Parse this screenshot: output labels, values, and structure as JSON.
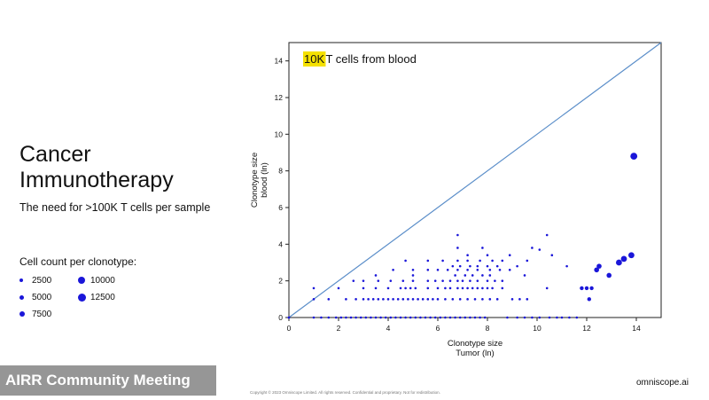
{
  "slide": {
    "title_line1": "Cancer",
    "title_line2": "Immunotherapy",
    "subtitle": "The need for >100K T cells per sample"
  },
  "legend": {
    "title": "Cell count per clonotype:",
    "items": [
      {
        "label": "2500",
        "size": 2500
      },
      {
        "label": "10000",
        "size": 10000
      },
      {
        "label": "5000",
        "size": 5000
      },
      {
        "label": "12500",
        "size": 12500
      },
      {
        "label": "7500",
        "size": 7500
      }
    ]
  },
  "footer": {
    "watermark": "AIRR Community Meeting",
    "copyright": "Copyright © 2023 Omniscope Limited. All rights reserved. Confidential and proprietary. Not for redistribution.",
    "brand": "omniscope.ai"
  },
  "colors": {
    "points": "#1a16d9",
    "diagonal": "#5b8ec9",
    "highlight": "#f5e100",
    "axis": "#222222"
  },
  "chart_data": {
    "type": "scatter",
    "annotation_highlight": "10K",
    "annotation_rest": " T cells from blood",
    "xlabel": "Clonotype size\nTumor (ln)",
    "ylabel": "Clonotype size\nblood (ln)",
    "xlim": [
      0,
      15
    ],
    "ylim": [
      0,
      15
    ],
    "xticks": [
      0,
      2,
      4,
      6,
      8,
      10,
      12,
      14
    ],
    "yticks": [
      0,
      2,
      4,
      6,
      8,
      10,
      12,
      14
    ],
    "reference_line": {
      "type": "identity",
      "from": [
        0,
        0
      ],
      "to": [
        15,
        15
      ]
    },
    "points": [
      [
        0.0,
        0.0
      ],
      [
        0.0,
        0.0
      ],
      [
        1.0,
        0.0
      ],
      [
        1.3,
        0.0
      ],
      [
        1.6,
        0.0
      ],
      [
        1.9,
        0.0
      ],
      [
        2.1,
        0.0
      ],
      [
        2.3,
        0.0
      ],
      [
        2.5,
        0.0
      ],
      [
        2.7,
        0.0
      ],
      [
        2.9,
        0.0
      ],
      [
        3.1,
        0.0
      ],
      [
        3.3,
        0.0
      ],
      [
        3.5,
        0.0
      ],
      [
        3.7,
        0.0
      ],
      [
        3.9,
        0.0
      ],
      [
        4.1,
        0.0
      ],
      [
        4.3,
        0.0
      ],
      [
        4.5,
        0.0
      ],
      [
        4.7,
        0.0
      ],
      [
        4.9,
        0.0
      ],
      [
        5.1,
        0.0
      ],
      [
        5.3,
        0.0
      ],
      [
        5.5,
        0.0
      ],
      [
        5.7,
        0.0
      ],
      [
        5.9,
        0.0
      ],
      [
        6.1,
        0.0
      ],
      [
        6.3,
        0.0
      ],
      [
        6.5,
        0.0
      ],
      [
        6.7,
        0.0
      ],
      [
        6.9,
        0.0
      ],
      [
        7.1,
        0.0
      ],
      [
        7.3,
        0.0
      ],
      [
        7.5,
        0.0
      ],
      [
        7.7,
        0.0
      ],
      [
        7.9,
        0.0
      ],
      [
        8.8,
        0.0
      ],
      [
        9.2,
        0.0
      ],
      [
        9.5,
        0.0
      ],
      [
        9.8,
        0.0
      ],
      [
        10.1,
        0.0
      ],
      [
        10.5,
        0.0
      ],
      [
        10.8,
        0.0
      ],
      [
        11.0,
        0.0
      ],
      [
        11.3,
        0.0
      ],
      [
        11.6,
        0.0
      ],
      [
        1.0,
        1.0
      ],
      [
        1.6,
        1.0
      ],
      [
        2.3,
        1.0
      ],
      [
        2.7,
        1.0
      ],
      [
        3.0,
        1.0
      ],
      [
        3.2,
        1.0
      ],
      [
        3.4,
        1.0
      ],
      [
        3.6,
        1.0
      ],
      [
        3.8,
        1.0
      ],
      [
        4.0,
        1.0
      ],
      [
        4.2,
        1.0
      ],
      [
        4.4,
        1.0
      ],
      [
        4.6,
        1.0
      ],
      [
        4.8,
        1.0
      ],
      [
        5.0,
        1.0
      ],
      [
        5.2,
        1.0
      ],
      [
        5.4,
        1.0
      ],
      [
        5.6,
        1.0
      ],
      [
        5.8,
        1.0
      ],
      [
        6.0,
        1.0
      ],
      [
        6.3,
        1.0
      ],
      [
        6.6,
        1.0
      ],
      [
        6.9,
        1.0
      ],
      [
        7.2,
        1.0
      ],
      [
        7.5,
        1.0
      ],
      [
        7.8,
        1.0
      ],
      [
        8.1,
        1.0
      ],
      [
        8.4,
        1.0
      ],
      [
        9.0,
        1.0
      ],
      [
        9.3,
        1.0
      ],
      [
        9.6,
        1.0
      ],
      [
        1.0,
        1.6
      ],
      [
        2.0,
        1.6
      ],
      [
        3.0,
        1.6
      ],
      [
        3.5,
        1.6
      ],
      [
        4.0,
        1.6
      ],
      [
        4.5,
        1.6
      ],
      [
        4.7,
        1.6
      ],
      [
        4.9,
        1.6
      ],
      [
        5.1,
        1.6
      ],
      [
        5.6,
        1.6
      ],
      [
        6.0,
        1.6
      ],
      [
        6.3,
        1.6
      ],
      [
        6.5,
        1.6
      ],
      [
        6.8,
        1.6
      ],
      [
        7.0,
        1.6
      ],
      [
        7.2,
        1.6
      ],
      [
        7.4,
        1.6
      ],
      [
        7.6,
        1.6
      ],
      [
        7.8,
        1.6
      ],
      [
        8.0,
        1.6
      ],
      [
        8.2,
        1.6
      ],
      [
        8.6,
        1.6
      ],
      [
        10.4,
        1.6
      ],
      [
        2.6,
        2.0
      ],
      [
        3.0,
        2.0
      ],
      [
        3.6,
        2.0
      ],
      [
        4.1,
        2.0
      ],
      [
        4.6,
        2.0
      ],
      [
        5.0,
        2.0
      ],
      [
        5.6,
        2.0
      ],
      [
        5.9,
        2.0
      ],
      [
        6.2,
        2.0
      ],
      [
        6.5,
        2.0
      ],
      [
        6.8,
        2.0
      ],
      [
        7.0,
        2.0
      ],
      [
        7.3,
        2.0
      ],
      [
        7.6,
        2.0
      ],
      [
        8.0,
        2.0
      ],
      [
        8.3,
        2.0
      ],
      [
        8.6,
        2.0
      ],
      [
        3.5,
        2.3
      ],
      [
        5.0,
        2.3
      ],
      [
        6.7,
        2.3
      ],
      [
        7.1,
        2.3
      ],
      [
        7.4,
        2.3
      ],
      [
        7.8,
        2.3
      ],
      [
        8.1,
        2.3
      ],
      [
        9.5,
        2.3
      ],
      [
        4.2,
        2.6
      ],
      [
        5.0,
        2.6
      ],
      [
        5.6,
        2.6
      ],
      [
        6.0,
        2.6
      ],
      [
        6.4,
        2.6
      ],
      [
        6.8,
        2.6
      ],
      [
        7.2,
        2.6
      ],
      [
        7.6,
        2.6
      ],
      [
        8.1,
        2.6
      ],
      [
        8.5,
        2.6
      ],
      [
        8.9,
        2.6
      ],
      [
        6.6,
        2.8
      ],
      [
        6.9,
        2.8
      ],
      [
        7.3,
        2.8
      ],
      [
        7.6,
        2.8
      ],
      [
        8.0,
        2.8
      ],
      [
        8.4,
        2.8
      ],
      [
        9.2,
        2.8
      ],
      [
        11.2,
        2.8
      ],
      [
        4.7,
        3.1
      ],
      [
        5.6,
        3.1
      ],
      [
        6.2,
        3.1
      ],
      [
        6.8,
        3.1
      ],
      [
        7.2,
        3.1
      ],
      [
        7.7,
        3.1
      ],
      [
        8.2,
        3.1
      ],
      [
        8.6,
        3.1
      ],
      [
        9.6,
        3.1
      ],
      [
        7.2,
        3.4
      ],
      [
        8.0,
        3.4
      ],
      [
        8.9,
        3.4
      ],
      [
        10.6,
        3.4
      ],
      [
        6.8,
        3.8
      ],
      [
        7.8,
        3.8
      ],
      [
        9.8,
        3.8
      ],
      [
        10.1,
        3.7
      ],
      [
        6.8,
        4.5
      ],
      [
        10.4,
        4.5
      ],
      [
        11.8,
        1.6
      ],
      [
        12.0,
        1.6
      ],
      [
        12.2,
        1.6
      ],
      [
        12.1,
        1.0
      ],
      [
        12.4,
        2.6
      ],
      [
        12.5,
        2.8
      ],
      [
        12.9,
        2.3
      ],
      [
        13.3,
        3.0
      ],
      [
        13.5,
        3.2
      ],
      [
        13.8,
        3.4
      ],
      [
        13.9,
        8.8
      ]
    ],
    "sizes": [
      1,
      1,
      1,
      1,
      1,
      1,
      1,
      1,
      1,
      1,
      1,
      1,
      1,
      1,
      1,
      1,
      1,
      1,
      1,
      1,
      1,
      1,
      1,
      1,
      1,
      1,
      1,
      1,
      1,
      1,
      1,
      1,
      1,
      1,
      1,
      1,
      1,
      1,
      1,
      1,
      1,
      1,
      1,
      1,
      1,
      1,
      1,
      1,
      1,
      1,
      1,
      1,
      1,
      1,
      1,
      1,
      1,
      1,
      1,
      1,
      1,
      1,
      1,
      1,
      1,
      1,
      1,
      1,
      1,
      1,
      1,
      1,
      1,
      1,
      1,
      1,
      1,
      1,
      1,
      1,
      1,
      1,
      1,
      1,
      1,
      1,
      1,
      1,
      1,
      1,
      1,
      1,
      1,
      1,
      1,
      1,
      1,
      1,
      1,
      1,
      1,
      1,
      1,
      1,
      1,
      1,
      1,
      1,
      1,
      1,
      1,
      1,
      1,
      1,
      1,
      1,
      1,
      1,
      1,
      1,
      1,
      1,
      1,
      1,
      1,
      1,
      1,
      1,
      1,
      1,
      1,
      1,
      1,
      1,
      1,
      1,
      1,
      1,
      1,
      1,
      1,
      1,
      1,
      1,
      1,
      1,
      1,
      1,
      1,
      1,
      1,
      1,
      1,
      1,
      1,
      1,
      1,
      1,
      1,
      1,
      1,
      1,
      1,
      2,
      2,
      2,
      2,
      3,
      3,
      3,
      4,
      4,
      4,
      5
    ]
  }
}
